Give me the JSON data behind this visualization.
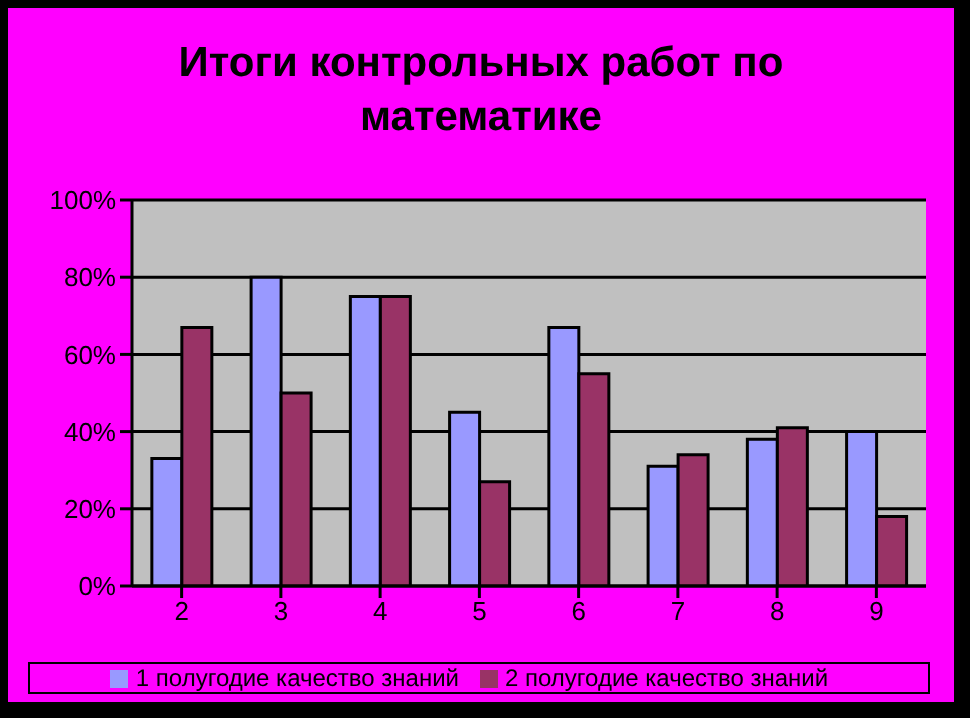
{
  "chart_data": {
    "type": "bar",
    "title": "Итоги контрольных работ по математике",
    "categories": [
      "2",
      "3",
      "4",
      "5",
      "6",
      "7",
      "8",
      "9"
    ],
    "series": [
      {
        "name": "1 полугодие качество знаний",
        "color": "#9999ff",
        "values": [
          33,
          80,
          75,
          45,
          67,
          31,
          38,
          40
        ]
      },
      {
        "name": "2 полугодие качество знаний",
        "color": "#993366",
        "values": [
          67,
          50,
          75,
          27,
          55,
          34,
          41,
          18
        ]
      }
    ],
    "ylim": [
      0,
      100
    ],
    "yticks": [
      {
        "value": 0,
        "label": "0%"
      },
      {
        "value": 20,
        "label": "20%"
      },
      {
        "value": 40,
        "label": "40%"
      },
      {
        "value": 60,
        "label": "60%"
      },
      {
        "value": 80,
        "label": "80%"
      },
      {
        "value": 100,
        "label": "100%"
      }
    ],
    "grid": "y",
    "legend": "bottom"
  }
}
